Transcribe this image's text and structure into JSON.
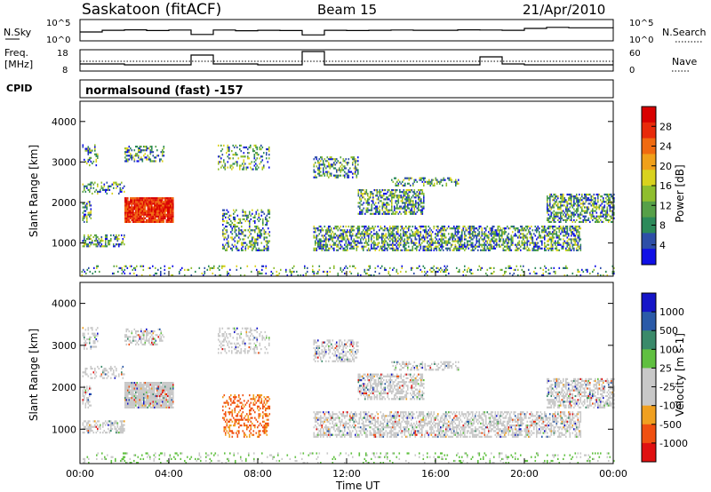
{
  "header": {
    "station": "Saskatoon (fitACF)",
    "beam": "Beam 15",
    "date": "21/Apr/2010"
  },
  "labels": {
    "nsky": "N.Sky",
    "nsearch": "N.Search",
    "freq_top": "Freq.",
    "freq_unit": "[MHz]",
    "nave": "Nave",
    "cpid": "CPID",
    "cpid_value": "normalsound (fast) -157",
    "xlabel": "Time UT",
    "noise_ticks_left": [
      "10^5",
      "10^0"
    ],
    "noise_ticks_right": [
      "10^5",
      "10^0"
    ],
    "freq_ticks_left": [
      "18",
      "8"
    ],
    "nave_ticks_right": [
      "60",
      "0"
    ]
  },
  "colors": {
    "power_scale": [
      "#1010e6",
      "#2e4fa8",
      "#2c8a5a",
      "#56a048",
      "#8fbe2e",
      "#d9d21e",
      "#f0a01a",
      "#f06a10",
      "#e82a0a",
      "#d80000"
    ],
    "velocity_scale": [
      "#e01010",
      "#f05010",
      "#f0a020",
      "#c8c8c8",
      "#c8c8c8",
      "#60c040",
      "#3a8a6a",
      "#2a5aa8",
      "#1515c8"
    ]
  },
  "chart_data": [
    {
      "type": "line",
      "name": "noise",
      "x": [
        "00:00",
        "01:00",
        "02:00",
        "03:00",
        "04:00",
        "05:00",
        "06:00",
        "07:00",
        "08:00",
        "09:00",
        "10:00",
        "11:00",
        "12:00",
        "13:00",
        "14:00",
        "15:00",
        "16:00",
        "17:00",
        "18:00",
        "19:00",
        "20:00",
        "21:00",
        "22:00",
        "23:00",
        "24:00"
      ],
      "series": [
        {
          "values": [
            100,
            300,
            400,
            250,
            350,
            20,
            350,
            220,
            300,
            250,
            15,
            300,
            250,
            300,
            350,
            300,
            300,
            400,
            350,
            300,
            1000,
            2000,
            1500,
            1500,
            1200
          ]
        }
      ],
      "scale": "log",
      "ylim": [
        1,
        100000
      ]
    },
    {
      "type": "line",
      "name": "frequency-nave",
      "x": [
        "00:00",
        "01:00",
        "02:00",
        "03:00",
        "04:00",
        "05:00",
        "06:00",
        "07:00",
        "08:00",
        "09:00",
        "10:00",
        "11:00",
        "12:00",
        "13:00",
        "14:00",
        "15:00",
        "16:00",
        "17:00",
        "18:00",
        "19:00",
        "20:00",
        "21:00",
        "22:00",
        "23:00",
        "24:00"
      ],
      "series": [
        {
          "values": [
            11,
            11,
            10.5,
            10.5,
            10.5,
            16,
            11,
            11,
            10.5,
            10.5,
            18,
            10.5,
            10.5,
            10.5,
            10.5,
            10.5,
            10.5,
            10.5,
            15,
            11,
            10.5,
            10.5,
            10.5,
            10.5,
            10.5
          ]
        }
      ],
      "ylim": [
        8,
        18
      ]
    },
    {
      "type": "heatmap",
      "name": "power",
      "xlabel": "",
      "ylabel": "Slant Range [km]",
      "xlim": [
        0,
        24
      ],
      "ylim": [
        180,
        4500
      ],
      "x_ticks": [
        "00:00",
        "04:00",
        "08:00",
        "12:00",
        "16:00",
        "20:00",
        "00:00"
      ],
      "y_ticks": [
        "1000",
        "2000",
        "3000",
        "4000"
      ],
      "colorbar_label": "Power [dB]",
      "colorbar_ticks": [
        "4",
        "8",
        "12",
        "16",
        "20",
        "24",
        "28"
      ]
    },
    {
      "type": "heatmap",
      "name": "velocity",
      "xlabel": "Time UT",
      "ylabel": "Slant Range [km]",
      "xlim": [
        0,
        24
      ],
      "ylim": [
        180,
        4500
      ],
      "x_ticks": [
        "00:00",
        "04:00",
        "08:00",
        "12:00",
        "16:00",
        "20:00",
        "00:00"
      ],
      "y_ticks": [
        "1000",
        "2000",
        "3000",
        "4000"
      ],
      "colorbar_label": "Velocity [m s-1]",
      "colorbar_ticks": [
        "1000",
        "500",
        "100",
        "25",
        "-25",
        "-100",
        "-500",
        "-1000"
      ]
    }
  ]
}
